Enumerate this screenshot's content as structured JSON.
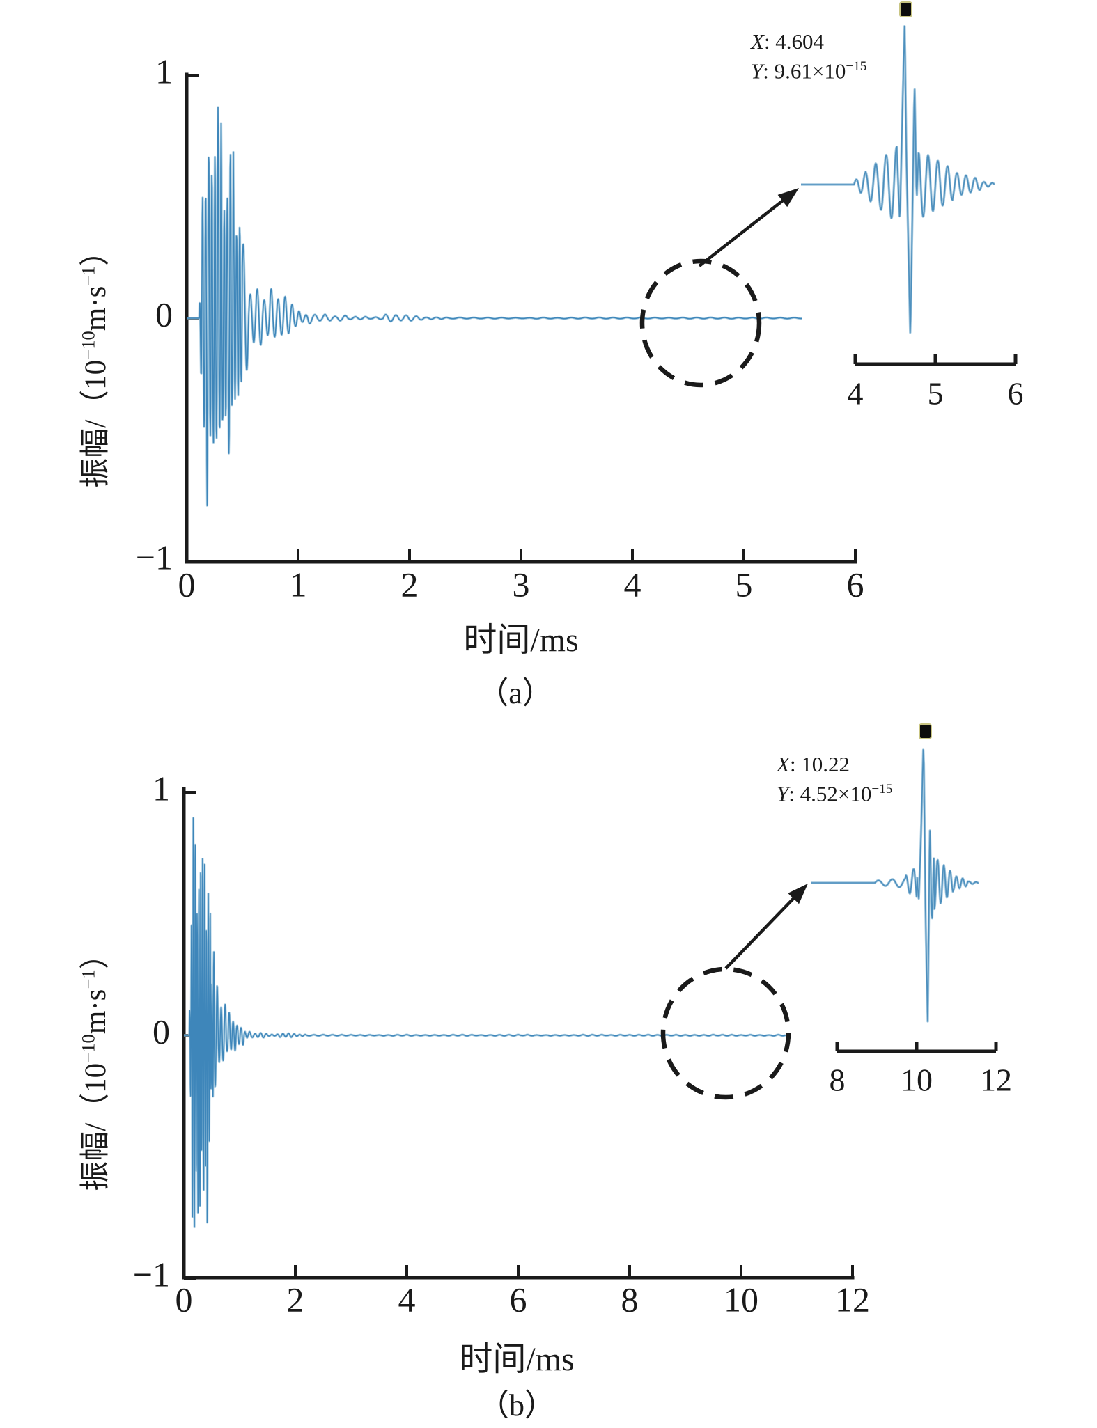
{
  "chart_data": [
    {
      "type": "line",
      "panel": "a",
      "caption": "（a）",
      "xlabel": "时间/ms",
      "ylabel_plain": "振幅/（10⁻¹⁰m·s⁻¹）",
      "ylabel_parts": {
        "pre": "振幅/（10",
        "sup1": "−10",
        "mid": "m·s",
        "sup2": "−1",
        "post": "）"
      },
      "xlim": [
        0,
        6
      ],
      "ylim": [
        -1,
        1
      ],
      "xticks": [
        0,
        1,
        2,
        3,
        4,
        5,
        6
      ],
      "yticks": [
        1,
        0,
        -1
      ],
      "grid": false,
      "legend": null,
      "series": [
        {
          "name": "vibration-waveform",
          "description": "acoustic-emission burst: onset 0.12 ms, dense oscillation to ~0.45 ms with peak amplitude ~+0.95/−0.9 (×10⁻¹⁰ m·s⁻¹), decays to near zero by ~1.1 ms, tiny ripple near 1.8–2.1 ms, flat trace ends at 5.5 ms"
        }
      ],
      "datatip": {
        "x": 4.604,
        "y": "9.61e-15",
        "label_x_var": "X",
        "label_x_rest": ": 4.604",
        "label_y_var": "Y",
        "label_y_rest": ": 9.61×10",
        "label_y_exp": "−15"
      },
      "inset": {
        "xlim": [
          4,
          6
        ],
        "xticks": [
          4,
          5,
          6
        ],
        "peak_x": 4.604,
        "description": "zoomed view of dashed-circled region: weak wave packet with sharp peak marked at X=4.604 ms"
      }
    },
    {
      "type": "line",
      "panel": "b",
      "caption": "（b）",
      "xlabel": "时间/ms",
      "ylabel_plain": "振幅/（10⁻¹⁰m·s⁻¹）",
      "ylabel_parts": {
        "pre": "振幅/（10",
        "sup1": "−10",
        "mid": "m·s",
        "sup2": "−1",
        "post": "）"
      },
      "xlim": [
        0,
        12
      ],
      "ylim": [
        -1,
        1
      ],
      "xticks": [
        0,
        2,
        4,
        6,
        8,
        10,
        12
      ],
      "yticks": [
        1,
        0,
        -1
      ],
      "grid": false,
      "legend": null,
      "series": [
        {
          "name": "vibration-waveform",
          "description": "acoustic-emission burst: onset 0.1 ms, dense oscillation to ~0.5 ms with peak amplitude ~+0.95/−1.0 (×10⁻¹⁰ m·s⁻¹), decays by ~1.1 ms, tiny bump near 1.7–1.9 ms, flat trace ends at ~10.8 ms"
        }
      ],
      "datatip": {
        "x": 10.22,
        "y": "4.52e-15",
        "label_x_var": "X",
        "label_x_rest": ": 10.22",
        "label_y_var": "Y",
        "label_y_rest": ": 4.52×10",
        "label_y_exp": "−15"
      },
      "inset": {
        "xlim": [
          8,
          12
        ],
        "xticks": [
          8,
          10,
          12
        ],
        "peak_x": 10.22,
        "description": "zoomed view of dashed-circled region: sharp isolated spike marked at X=10.22 ms"
      }
    }
  ],
  "colors": {
    "trace_light": "#9fc6de",
    "trace_core": "#3e86ba",
    "inset_light": "#8fbcd8",
    "inset_core": "#4d8fbd",
    "axis": "#1a1a1a",
    "marker_fill": "#0c0c0c",
    "marker_edge": "#c9c583"
  }
}
